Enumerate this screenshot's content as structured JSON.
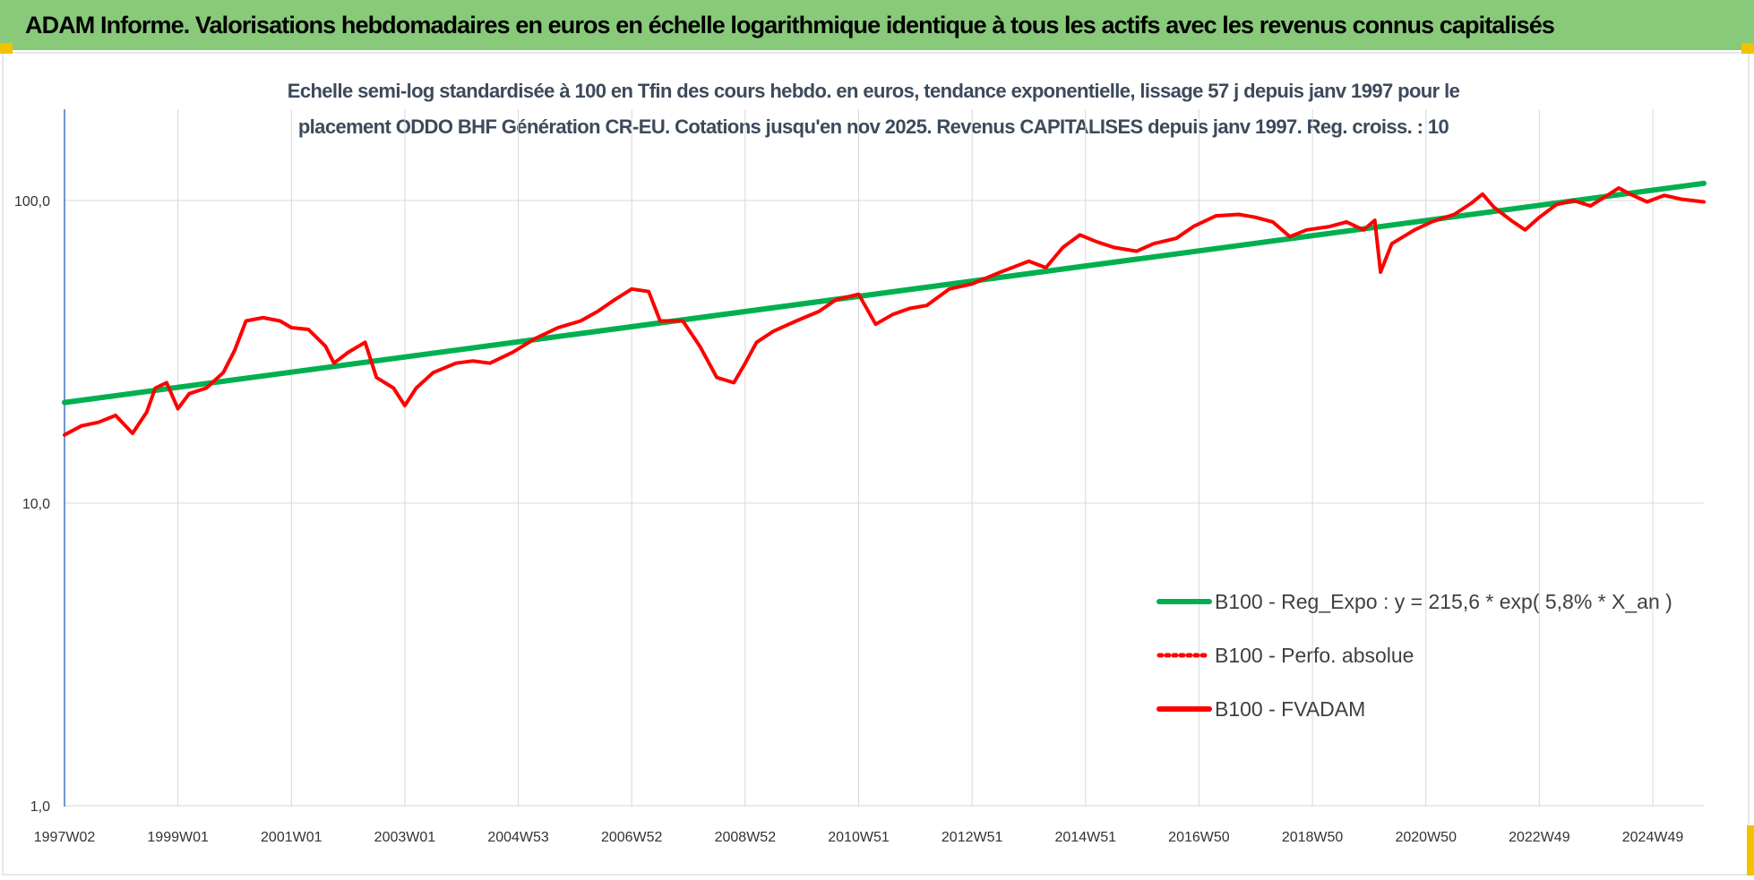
{
  "banner": {
    "title": "ADAM Informe. Valorisations hebdomadaires en euros en échelle logarithmique identique à tous les actifs avec les revenus connus capitalisés"
  },
  "colors": {
    "banner_bg": "#88c97a",
    "regression": "#00b050",
    "fvadam": "#ff0000",
    "perfo": "#ff0000",
    "grid": "#d9d9d9",
    "axis": "#4472c4",
    "corner": "#f2c200"
  },
  "chart_data": {
    "type": "line",
    "title": "Echelle semi-log standardisée à 100 en Tfin des cours hebdo. en euros, tendance exponentielle, lissage 57 j depuis janv 1997 pour le placement ODDO BHF Génération CR-EU. Cotations jusqu'en nov 2025. Revenus CAPITALISES depuis janv 1997. Reg. croiss. : 10",
    "title_lines": [
      "Echelle semi-log standardisée à 100 en Tfin des cours hebdo. en euros, tendance exponentielle, lissage 57 j depuis janv 1997 pour le",
      "placement ODDO BHF Génération CR-EU. Cotations jusqu'en nov 2025.  Revenus CAPITALISES depuis janv 1997. Reg. croiss. : 10"
    ],
    "y_scale": "log",
    "ylim": [
      1,
      200
    ],
    "y_ticks": [
      {
        "value": 1,
        "label": "1,0"
      },
      {
        "value": 10,
        "label": "10,0"
      },
      {
        "value": 100,
        "label": "100,0"
      }
    ],
    "xlim": [
      1997.0,
      2025.9
    ],
    "x_ticks": [
      {
        "value": 1997.0,
        "label": "1997W02"
      },
      {
        "value": 1999.0,
        "label": "1999W01"
      },
      {
        "value": 2001.0,
        "label": "2001W01"
      },
      {
        "value": 2003.0,
        "label": "2003W01"
      },
      {
        "value": 2005.0,
        "label": "2004W53"
      },
      {
        "value": 2007.0,
        "label": "2006W52"
      },
      {
        "value": 2009.0,
        "label": "2008W52"
      },
      {
        "value": 2011.0,
        "label": "2010W51"
      },
      {
        "value": 2013.0,
        "label": "2012W51"
      },
      {
        "value": 2015.0,
        "label": "2014W51"
      },
      {
        "value": 2017.0,
        "label": "2016W50"
      },
      {
        "value": 2019.0,
        "label": "2018W50"
      },
      {
        "value": 2021.0,
        "label": "2020W50"
      },
      {
        "value": 2023.0,
        "label": "2022W49"
      },
      {
        "value": 2025.0,
        "label": "2024W49"
      }
    ],
    "grid": "vertical-and-horizontal",
    "legend_position": "bottom-right",
    "series": [
      {
        "name": "B100 - Reg_Expo : y = 215,6 * exp( 5,8% *  X_an )",
        "style": "solid-thick",
        "x": [
          1997.0,
          2025.9
        ],
        "values": [
          21.5,
          114
        ]
      },
      {
        "name": "B100 - Perfo. absolue",
        "style": "dotted",
        "x": [],
        "values": []
      },
      {
        "name": "B100 - FVADAM",
        "style": "solid-thick",
        "x": [
          1997.0,
          1997.3,
          1997.6,
          1997.9,
          1998.2,
          1998.45,
          1998.6,
          1998.8,
          1999.0,
          1999.2,
          1999.5,
          1999.8,
          2000.0,
          2000.2,
          2000.5,
          2000.8,
          2001.0,
          2001.3,
          2001.6,
          2001.75,
          2002.0,
          2002.3,
          2002.5,
          2002.8,
          2003.0,
          2003.2,
          2003.5,
          2003.9,
          2004.2,
          2004.5,
          2004.9,
          2005.3,
          2005.7,
          2006.1,
          2006.4,
          2006.7,
          2007.0,
          2007.3,
          2007.5,
          2007.9,
          2008.2,
          2008.5,
          2008.8,
          2009.0,
          2009.2,
          2009.5,
          2009.9,
          2010.3,
          2010.6,
          2011.0,
          2011.3,
          2011.6,
          2011.9,
          2012.2,
          2012.6,
          2013.0,
          2013.5,
          2014.0,
          2014.3,
          2014.6,
          2014.9,
          2015.2,
          2015.5,
          2015.9,
          2016.2,
          2016.6,
          2016.9,
          2017.3,
          2017.7,
          2018.0,
          2018.3,
          2018.6,
          2018.9,
          2019.3,
          2019.6,
          2019.9,
          2020.1,
          2020.2,
          2020.4,
          2020.8,
          2021.1,
          2021.5,
          2021.8,
          2022.0,
          2022.2,
          2022.5,
          2022.75,
          2023.0,
          2023.3,
          2023.6,
          2023.9,
          2024.2,
          2024.4,
          2024.6,
          2024.9,
          2025.2,
          2025.5,
          2025.9
        ],
        "values": [
          16.8,
          18.0,
          18.5,
          19.5,
          17.0,
          20.0,
          24.0,
          25.0,
          20.5,
          23.0,
          24.0,
          27.0,
          32.0,
          40.0,
          41.0,
          40.0,
          38.0,
          37.5,
          33.0,
          29.0,
          31.5,
          34.0,
          26.0,
          24.0,
          21.0,
          24.0,
          27.0,
          29.0,
          29.5,
          29.0,
          31.5,
          35.0,
          38.0,
          40.0,
          43.0,
          47.0,
          51.0,
          50.0,
          40.0,
          40.0,
          33.0,
          26.0,
          25.0,
          29.0,
          34.0,
          37.0,
          40.0,
          43.0,
          47.0,
          49.0,
          39.0,
          42.0,
          44.0,
          45.0,
          51.0,
          53.0,
          58.0,
          63.0,
          60.0,
          70.0,
          77.0,
          73.0,
          70.0,
          68.0,
          72.0,
          75.0,
          82.0,
          89.0,
          90.0,
          88.0,
          85.0,
          76.0,
          80.0,
          82.0,
          85.0,
          80.0,
          86.0,
          58.0,
          72.0,
          80.0,
          85.0,
          90.0,
          98.0,
          105.0,
          95.0,
          86.0,
          80.0,
          88.0,
          97.0,
          100.0,
          96.0,
          104.0,
          110.0,
          105.0,
          99.0,
          104.0,
          101.0,
          99.0
        ]
      }
    ]
  }
}
